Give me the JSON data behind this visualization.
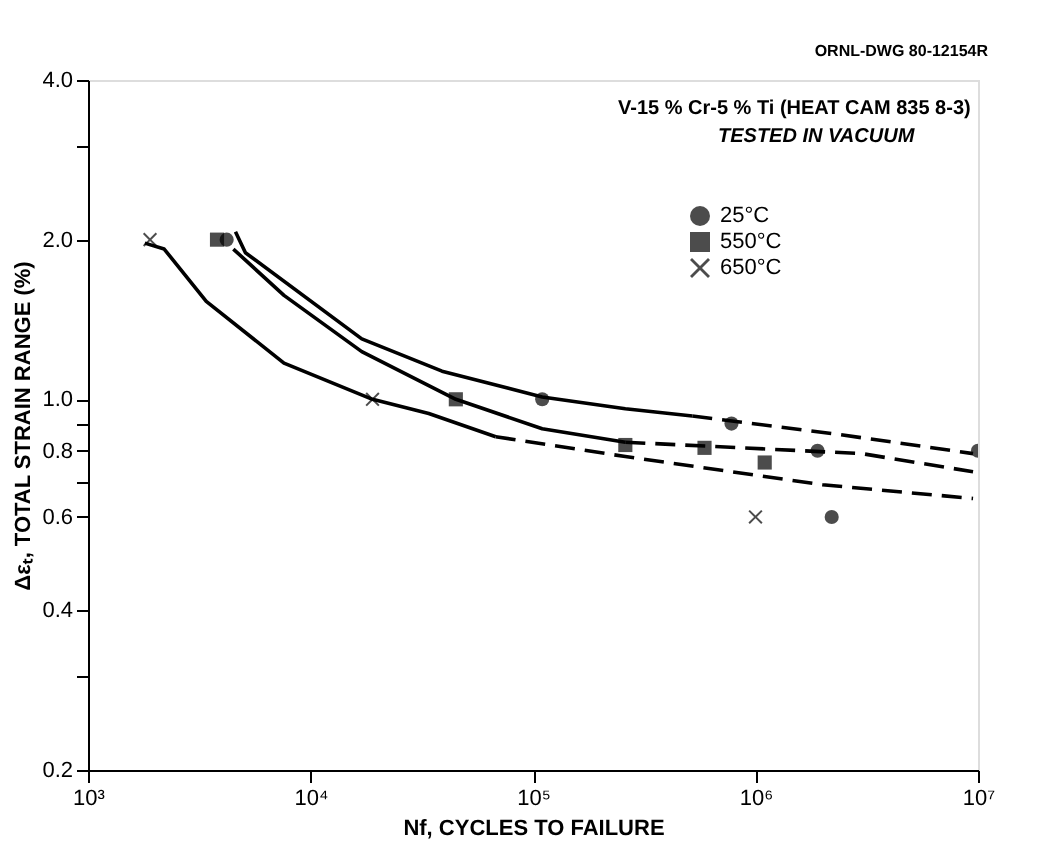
{
  "chart_data": {
    "type": "scatter",
    "xlabel": "Nf, CYCLES TO FAILURE",
    "ylabel": "Δεₜ, TOTAL STRAIN RANGE (%)",
    "annotations": [
      "ORNL-DWG 80-12154R",
      "V-15 % Cr-5 % Ti (HEAT CAM 835 8-3)",
      "TESTED IN VACUUM"
    ],
    "log": "xy",
    "xlim": [
      1000,
      10000000
    ],
    "ylim": [
      0.2,
      4
    ],
    "xticks": [
      {
        "value": 1000,
        "label": "10³"
      },
      {
        "value": 10000,
        "label": "10⁴"
      },
      {
        "value": 100000,
        "label": "10⁵"
      },
      {
        "value": 1000000,
        "label": "10⁶"
      },
      {
        "value": 10000000,
        "label": "10⁷"
      }
    ],
    "yticks": [
      {
        "value": 0.2,
        "label": "0.2"
      },
      {
        "value": 0.3,
        "label": null
      },
      {
        "value": 0.4,
        "label": "0.4"
      },
      {
        "value": 0.6,
        "label": "0.6"
      },
      {
        "value": 0.7,
        "label": null
      },
      {
        "value": 0.8,
        "label": "0.8"
      },
      {
        "value": 0.9,
        "label": null
      },
      {
        "value": 1,
        "label": "1.0"
      },
      {
        "value": 2,
        "label": "2.0"
      },
      {
        "value": 3,
        "label": null
      },
      {
        "value": 4,
        "label": "4.0"
      }
    ],
    "grid": false,
    "legend": "top right",
    "series": [
      {
        "name": "25°C",
        "color": "#000000",
        "marker": "circle",
        "x": [
          4200,
          110000,
          780000,
          1900000,
          2200000,
          10000000
        ],
        "values": [
          2.0,
          1.0,
          0.9,
          0.8,
          0.6,
          0.8
        ]
      },
      {
        "name": "550°C",
        "color": "#000000",
        "marker": "square",
        "x": [
          3800,
          45000,
          260000,
          590000,
          1100000
        ],
        "values": [
          2.0,
          1.0,
          0.82,
          0.81,
          0.76
        ]
      },
      {
        "name": "650°C",
        "color": "#000000",
        "marker": "cross",
        "x": [
          1900,
          19000,
          1000000
        ],
        "values": [
          2.0,
          1.0,
          0.6
        ]
      },
      {
        "type": "line",
        "color": "#000000",
        "line_style": "solid",
        "marker": "none",
        "x": [
          4600,
          5100,
          17000,
          39000,
          110000,
          260000,
          520000
        ],
        "values": [
          2.07,
          1.89,
          1.3,
          1.13,
          1.01,
          0.96,
          0.93
        ]
      },
      {
        "type": "line",
        "color": "#000000",
        "line_style": "dashed",
        "marker": "none",
        "x": [
          520000,
          2300000,
          9500000
        ],
        "values": [
          0.93,
          0.86,
          0.79
        ]
      },
      {
        "type": "line",
        "color": "#000000",
        "line_style": "solid",
        "marker": "none",
        "x": [
          4500,
          7600,
          17000,
          45000,
          110000,
          260000
        ],
        "values": [
          1.92,
          1.57,
          1.23,
          1.0,
          0.88,
          0.83
        ]
      },
      {
        "type": "line",
        "color": "#000000",
        "line_style": "dashed",
        "marker": "none",
        "x": [
          260000,
          3000000,
          9500000
        ],
        "values": [
          0.83,
          0.79,
          0.73
        ]
      },
      {
        "type": "line",
        "color": "#000000",
        "line_style": "solid",
        "marker": "none",
        "x": [
          1800,
          2200,
          3400,
          7600,
          19000,
          34000,
          68000
        ],
        "values": [
          1.97,
          1.92,
          1.53,
          1.17,
          1.0,
          0.94,
          0.85
        ]
      },
      {
        "type": "line",
        "color": "#000000",
        "line_style": "dashed",
        "marker": "none",
        "x": [
          68000,
          260000,
          2000000,
          9500000
        ],
        "values": [
          0.85,
          0.78,
          0.69,
          0.65
        ]
      }
    ]
  }
}
